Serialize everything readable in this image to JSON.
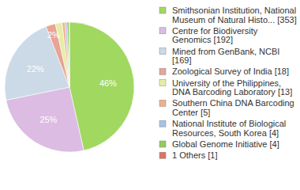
{
  "chart_data": {
    "type": "pie",
    "categories": [
      "Smithsonian Institution, National Museum of Natural Histo... [353]",
      "Centre for Biodiversity Genomics [192]",
      "Mined from GenBank, NCBI [169]",
      "Zoological Survey of India [18]",
      "University of the Philippines, DNA Barcoding Laboratory [13]",
      "Southern China DNA Barcoding Center [5]",
      "National Institute of Biological Resources, South Korea [4]",
      "Global Genome Initiative [4]",
      "1 Others [1]"
    ],
    "values": [
      46.4,
      25.3,
      22.3,
      2.4,
      1.7,
      0.7,
      0.5,
      0.5,
      0.1
    ],
    "value_labels": [
      "46%",
      "25%",
      "22%",
      "2%",
      null,
      null,
      null,
      null,
      null
    ],
    "colors": [
      "#a0d860",
      "#dcbce2",
      "#ccd9e6",
      "#e8a494",
      "#e6eea6",
      "#f2b08a",
      "#a8c2e2",
      "#92cc5c",
      "#e0735f"
    ],
    "data_labels": true,
    "legend": "right"
  }
}
